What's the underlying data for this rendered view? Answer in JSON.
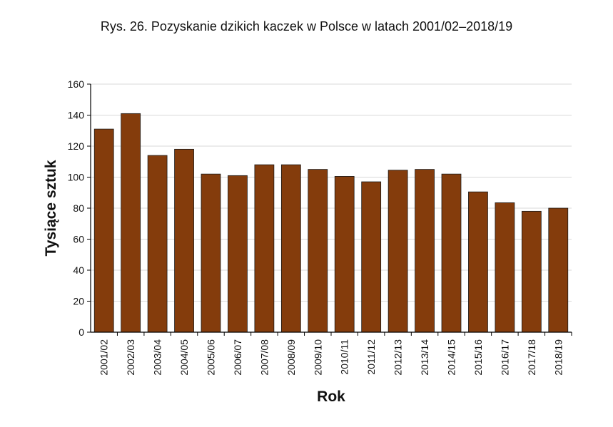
{
  "title": "Rys. 26. Pozyskanie dzikich kaczek w Polsce w latach 2001/02–2018/19",
  "chart_data": {
    "type": "bar",
    "title": "Rys. 26. Pozyskanie dzikich kaczek w Polsce w latach 2001/02–2018/19",
    "xlabel": "Rok",
    "ylabel": "Tysiące sztuk",
    "ylim": [
      0,
      160
    ],
    "yticks": [
      "0",
      "20",
      "40",
      "60",
      "80",
      "100",
      "120",
      "140",
      "160"
    ],
    "grid": true,
    "legend": "none",
    "bar_color": "#843c0c",
    "categories": [
      "2001/02",
      "2002/03",
      "2003/04",
      "2004/05",
      "2005/06",
      "2006/07",
      "2007/08",
      "2008/09",
      "2009/10",
      "2010/11",
      "2011/12",
      "2012/13",
      "2013/14",
      "2014/15",
      "2015/16",
      "2016/17",
      "2017/18",
      "2018/19"
    ],
    "values": [
      131,
      141,
      114,
      118,
      102,
      101,
      108,
      108,
      105,
      100.5,
      97,
      104.5,
      105,
      102,
      90.5,
      83.5,
      78,
      80
    ]
  }
}
